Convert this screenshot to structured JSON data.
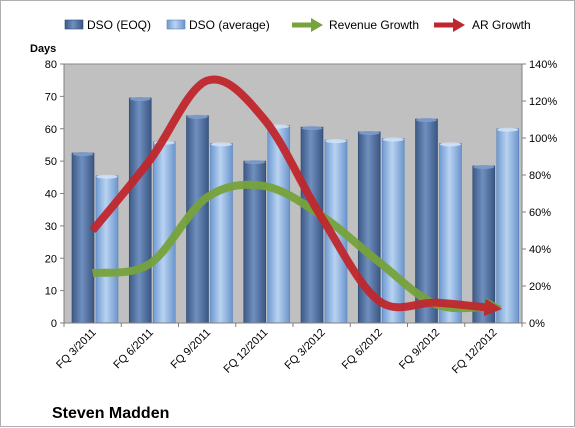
{
  "chart_data": {
    "type": "bar",
    "company": "Steven Madden",
    "ylabel": "Days",
    "ylim": [
      0,
      80
    ],
    "y2lim": [
      0,
      140
    ],
    "yticks": [
      "0",
      "10",
      "20",
      "30",
      "40",
      "50",
      "60",
      "70",
      "80"
    ],
    "y2ticks": [
      "0%",
      "20%",
      "40%",
      "60%",
      "80%",
      "100%",
      "120%",
      "140%"
    ],
    "grid": false,
    "legend_position": "top",
    "categories": [
      "FQ 3/2011",
      "FQ 6/2011",
      "FQ 9/2011",
      "FQ 12/2011",
      "FQ 3/2012",
      "FQ 6/2012",
      "FQ 9/2012",
      "FQ 12/2012"
    ],
    "series": [
      {
        "name": "DSO (EOQ)",
        "type": "bar",
        "axis": "left",
        "color": "#4f6d9c",
        "values": [
          52.5,
          69.5,
          64,
          50,
          60.5,
          59,
          63,
          48.5
        ]
      },
      {
        "name": "DSO (average)",
        "type": "bar",
        "axis": "left",
        "color": "#8fb4e0",
        "values": [
          45.5,
          56,
          55.5,
          61,
          56.5,
          57,
          55.5,
          60
        ]
      },
      {
        "name": "Revenue Growth",
        "type": "line",
        "axis": "right",
        "color": "#77a33c",
        "values": [
          27,
          32,
          68,
          74,
          58,
          33,
          10,
          9
        ]
      },
      {
        "name": "AR Growth",
        "type": "line",
        "axis": "right",
        "color": "#c0272d",
        "values": [
          50,
          88,
          131,
          110,
          57,
          12,
          11,
          8
        ]
      }
    ]
  }
}
